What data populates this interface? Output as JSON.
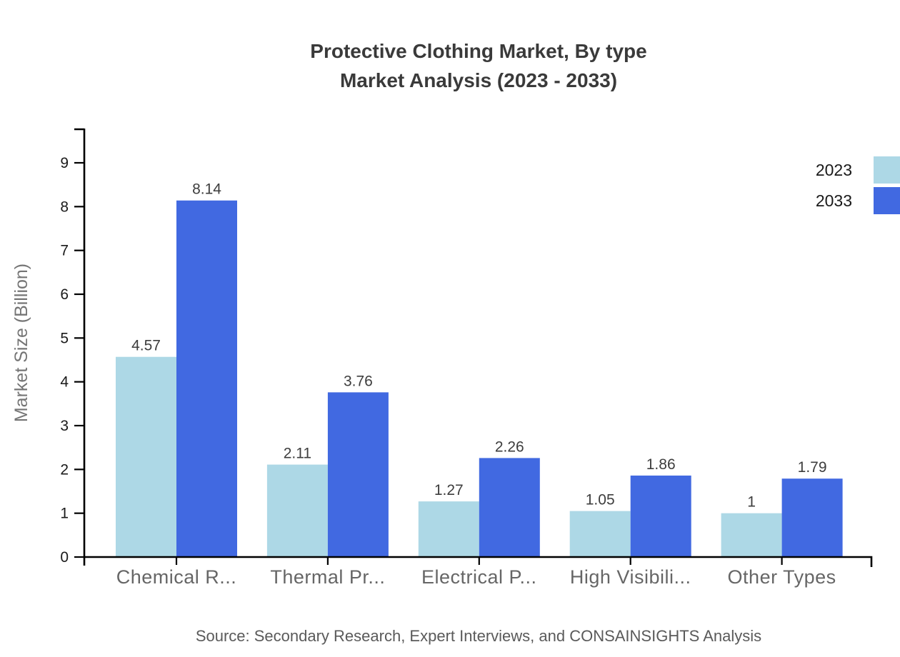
{
  "title": {
    "line1": "Protective Clothing Market, By type",
    "line2": "Market Analysis (2023 - 2033)"
  },
  "source": "Source: Secondary Research, Expert Interviews, and CONSAINSIGHTS Analysis",
  "colors": {
    "series_2023": "#ADD8E6",
    "series_2033": "#4169E1",
    "axis": "#000000",
    "title_text": "#3a3a3a",
    "tick_label": "#1a1a1a",
    "category_label": "#666666",
    "value_label": "#3d3d3d",
    "axis_title": "#757575",
    "source_text": "#5a5a5a"
  },
  "chart_data": {
    "type": "bar",
    "categories": [
      "Chemical R...",
      "Thermal Pr...",
      "Electrical P...",
      "High Visibili...",
      "Other Types"
    ],
    "series": [
      {
        "name": "2023",
        "color": "#ADD8E6",
        "values": [
          4.57,
          2.11,
          1.27,
          1.05,
          1
        ],
        "labels": [
          "4.57",
          "2.11",
          "1.27",
          "1.05",
          "1"
        ]
      },
      {
        "name": "2033",
        "color": "#4169E1",
        "values": [
          8.14,
          3.76,
          2.26,
          1.86,
          1.79
        ],
        "labels": [
          "8.14",
          "3.76",
          "2.26",
          "1.86",
          "1.79"
        ]
      }
    ],
    "title": "Protective Clothing Market, By type Market Analysis (2023 - 2033)",
    "xlabel": "",
    "ylabel": "Market Size (Billion)",
    "yticks": [
      0,
      1,
      2,
      3,
      4,
      5,
      6,
      7,
      8,
      9
    ],
    "ylim": [
      0,
      9.78
    ],
    "grid": false,
    "legend_position": "top-right",
    "value_labels_shown": true
  }
}
